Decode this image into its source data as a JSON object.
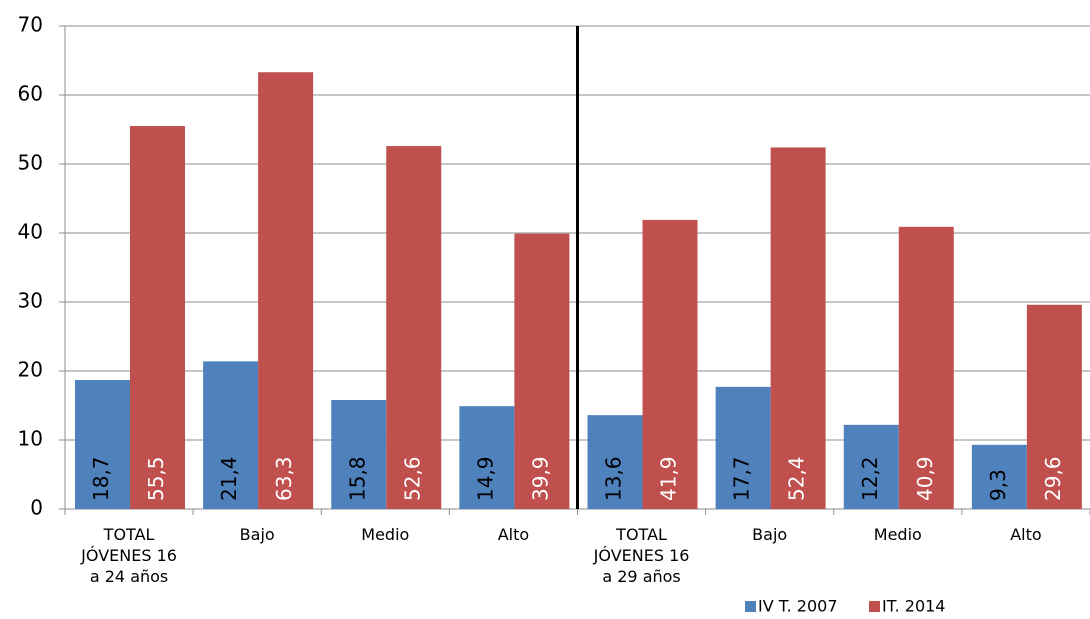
{
  "chart_data": {
    "type": "bar",
    "categories": [
      "TOTAL JÓVENES 16 a 24 años",
      "Bajo",
      "Medio",
      "Alto",
      "TOTAL JÓVENES 16 a 29 años",
      "Bajo",
      "Medio",
      "Alto"
    ],
    "series": [
      {
        "name": "IV T. 2007",
        "color": "#4f81bd",
        "values": [
          18.7,
          21.4,
          15.8,
          14.9,
          13.6,
          17.7,
          12.2,
          9.3
        ],
        "value_labels": [
          "18,7",
          "21,4",
          "15,8",
          "14,9",
          "13,6",
          "17,7",
          "12,2",
          "9,3"
        ]
      },
      {
        "name": "IT. 2014",
        "color": "#c0504d",
        "values": [
          55.5,
          63.3,
          52.6,
          39.9,
          41.9,
          52.4,
          40.9,
          29.6
        ],
        "value_labels": [
          "55,5",
          "63,3",
          "52,6",
          "39,9",
          "41,9",
          "52,4",
          "40,9",
          "29,6"
        ]
      }
    ],
    "ylim": [
      0,
      70
    ],
    "yticks": [
      0,
      10,
      20,
      30,
      40,
      50,
      60,
      70
    ],
    "grid": true,
    "legend": "bottom-right"
  }
}
